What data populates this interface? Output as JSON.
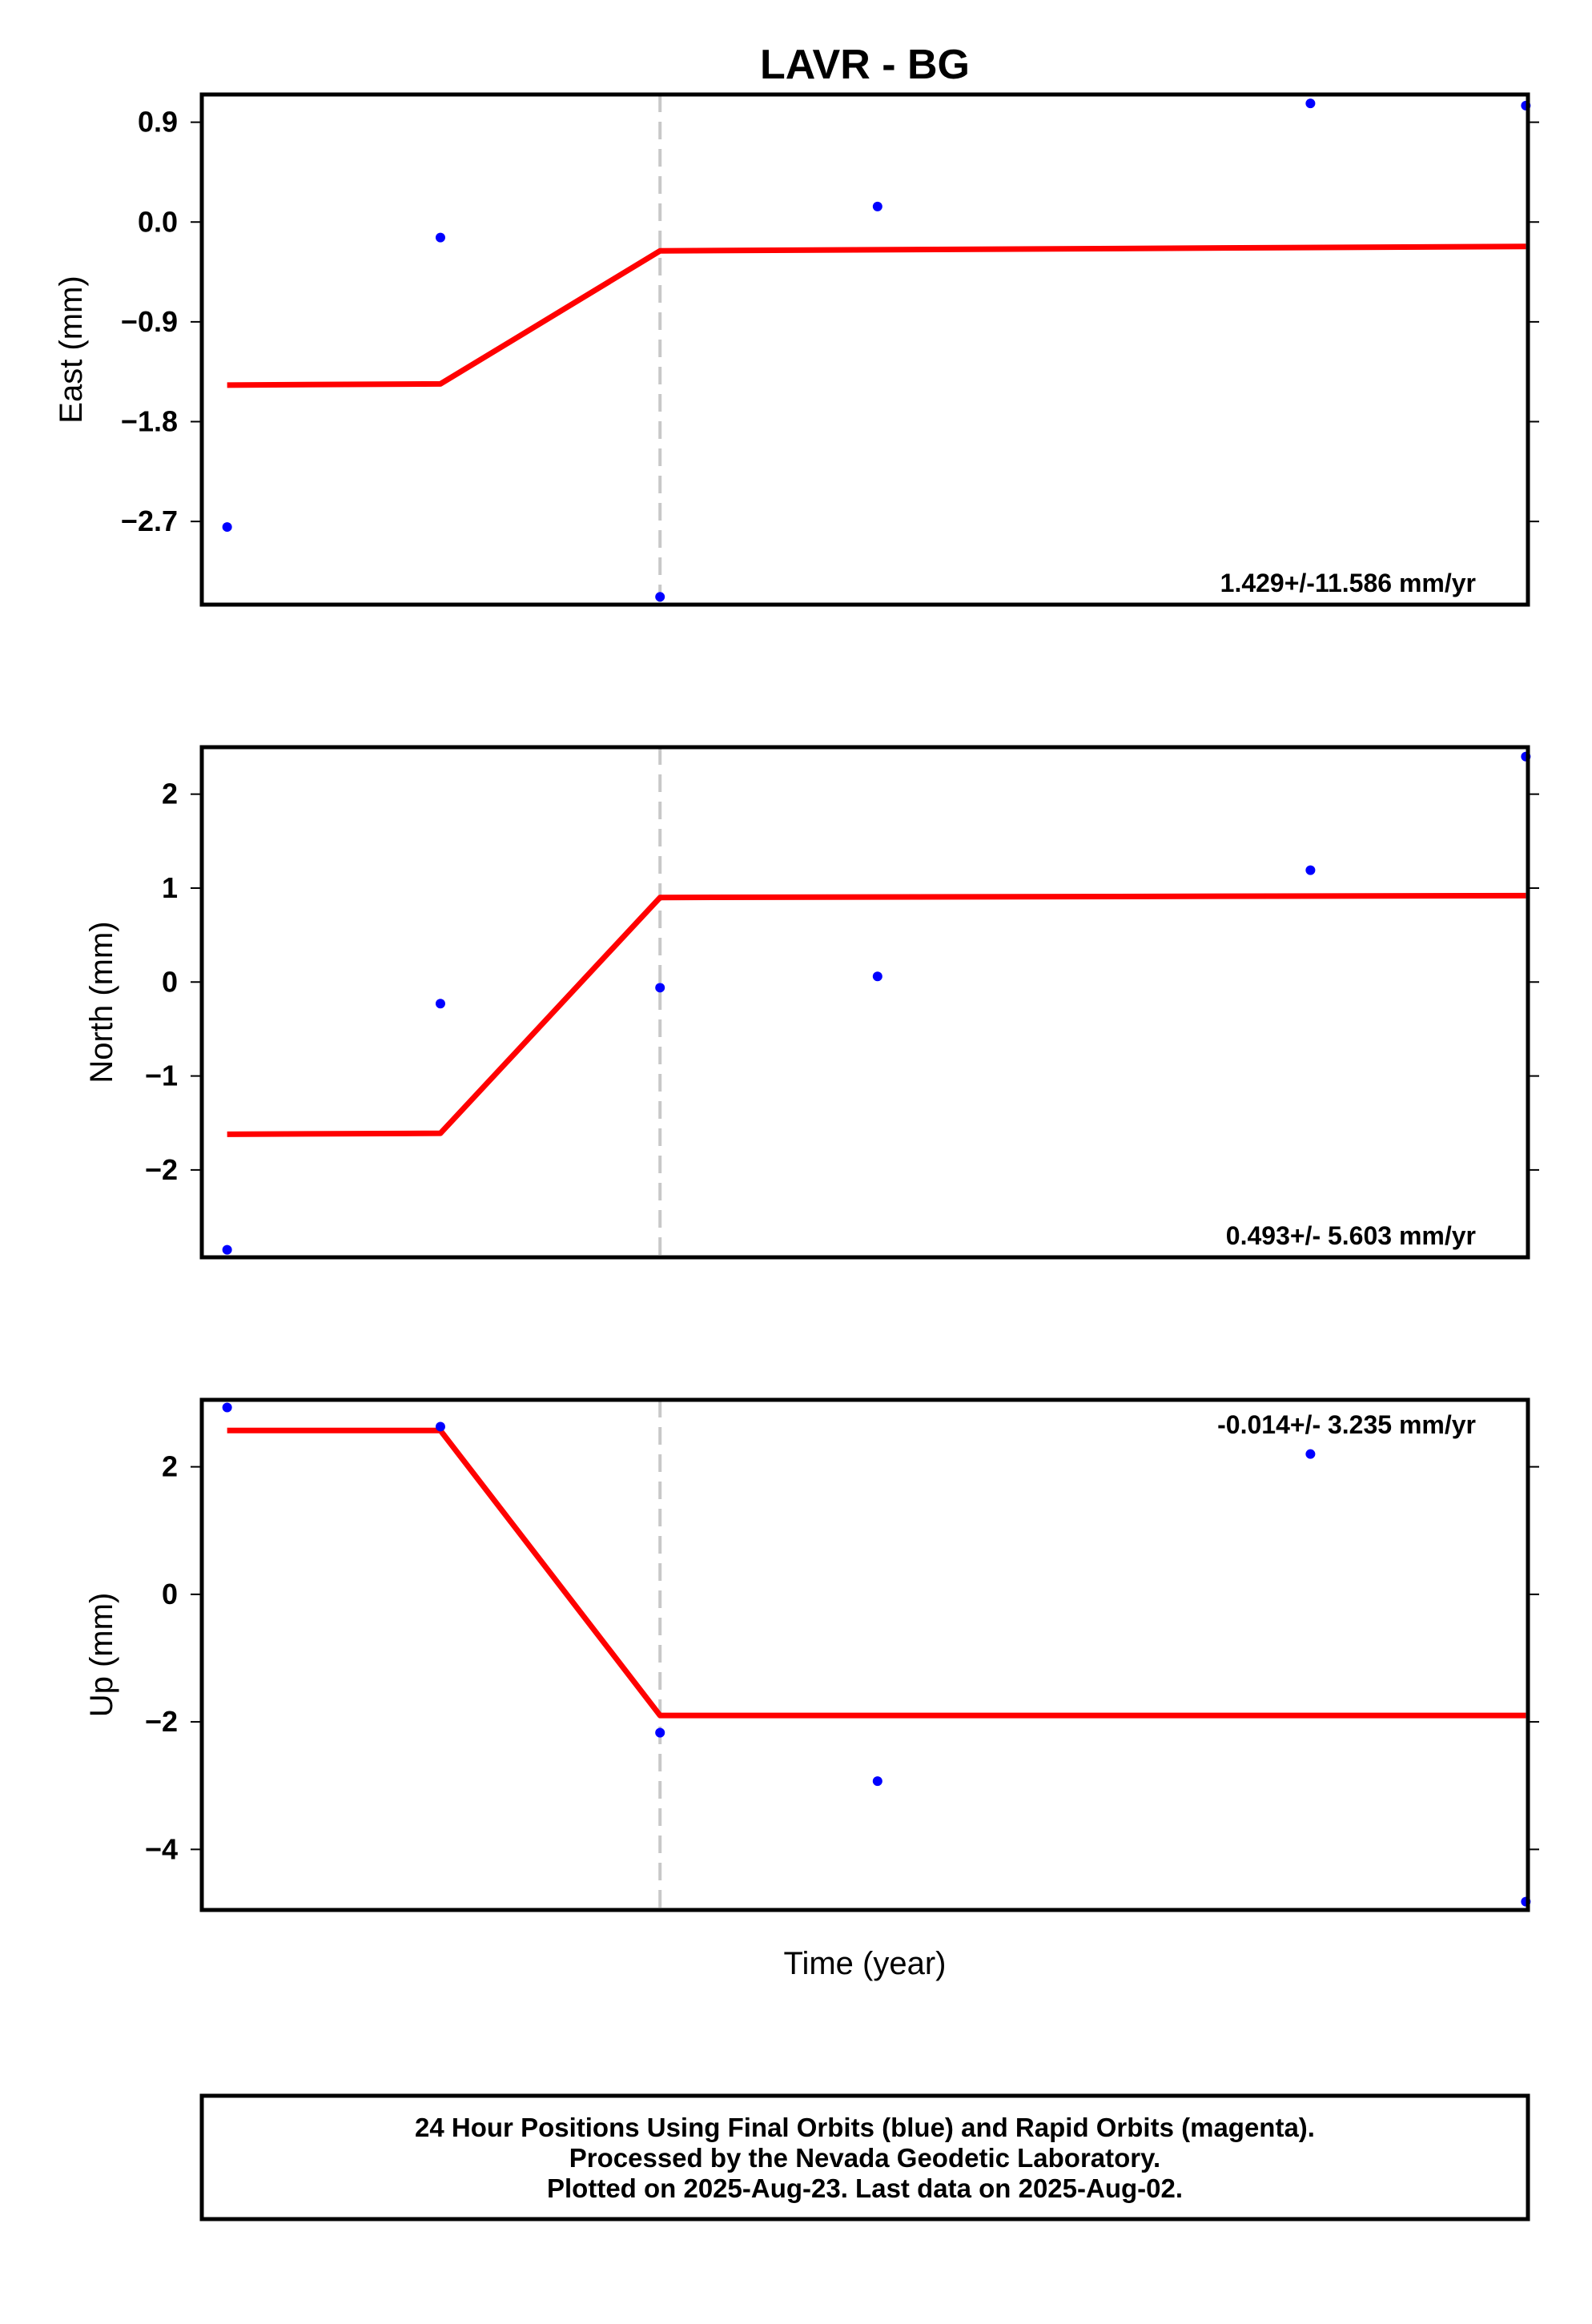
{
  "chart_data": {
    "title": "LAVR - BG",
    "xlabel": "Time (year)",
    "type": "scatter",
    "colors": {
      "points": "#0000ff",
      "fit": "#ff0000",
      "event_line": "#c8c8c8",
      "frame": "#000000"
    },
    "x_range": [
      0,
      6.28
    ],
    "event_x": 2.17,
    "panels": [
      {
        "ylabel": "East (mm)",
        "ylim": [
          -3.45,
          1.15
        ],
        "yticks": [
          -2.7,
          -1.8,
          -0.9,
          0.0,
          0.9
        ],
        "ytick_labels": [
          "−2.7",
          "−1.8",
          "−0.9",
          "0.0",
          "0.9"
        ],
        "rate_text": "1.429+/-11.586 mm/yr",
        "rate_position": "bottom-right",
        "points": [
          {
            "x": 0.12,
            "y": -2.75
          },
          {
            "x": 1.13,
            "y": -0.14
          },
          {
            "x": 2.17,
            "y": -3.38
          },
          {
            "x": 3.2,
            "y": 0.14
          },
          {
            "x": 5.25,
            "y": 1.07
          },
          {
            "x": 6.27,
            "y": 1.05
          }
        ],
        "fit": [
          {
            "x": 0.12,
            "y": -1.47
          },
          {
            "x": 1.13,
            "y": -1.46
          },
          {
            "x": 2.17,
            "y": -0.26
          },
          {
            "x": 6.27,
            "y": -0.22
          }
        ]
      },
      {
        "ylabel": "North (mm)",
        "ylim": [
          -2.93,
          2.5
        ],
        "yticks": [
          -2,
          -1,
          0,
          1,
          2
        ],
        "ytick_labels": [
          "−2",
          "−1",
          "0",
          "1",
          "2"
        ],
        "rate_text": "0.493+/- 5.603 mm/yr",
        "rate_position": "bottom-right",
        "points": [
          {
            "x": 0.12,
            "y": -2.85
          },
          {
            "x": 1.13,
            "y": -0.23
          },
          {
            "x": 2.17,
            "y": -0.06
          },
          {
            "x": 3.2,
            "y": 0.06
          },
          {
            "x": 5.25,
            "y": 1.19
          },
          {
            "x": 6.27,
            "y": 2.4
          }
        ],
        "fit": [
          {
            "x": 0.12,
            "y": -1.62
          },
          {
            "x": 1.13,
            "y": -1.61
          },
          {
            "x": 2.17,
            "y": 0.9
          },
          {
            "x": 6.27,
            "y": 0.92
          }
        ]
      },
      {
        "ylabel": "Up (mm)",
        "ylim": [
          -4.95,
          3.05
        ],
        "yticks": [
          -4,
          -2,
          0,
          2
        ],
        "ytick_labels": [
          "−4",
          "−2",
          "0",
          "2"
        ],
        "rate_text": "-0.014+/- 3.235 mm/yr",
        "rate_position": "top-right",
        "points": [
          {
            "x": 0.12,
            "y": 2.93
          },
          {
            "x": 1.13,
            "y": 2.63
          },
          {
            "x": 2.17,
            "y": -2.17
          },
          {
            "x": 3.2,
            "y": -2.93
          },
          {
            "x": 5.25,
            "y": 2.2
          },
          {
            "x": 6.27,
            "y": -4.82
          }
        ],
        "fit": [
          {
            "x": 0.12,
            "y": 2.57
          },
          {
            "x": 1.13,
            "y": 2.57
          },
          {
            "x": 2.17,
            "y": -1.9
          },
          {
            "x": 6.27,
            "y": -1.9
          }
        ]
      }
    ]
  },
  "footer": {
    "line1": "24 Hour Positions Using Final Orbits (blue) and Rapid Orbits (magenta).",
    "line2": "Processed by the Nevada Geodetic Laboratory.",
    "line3": "Plotted on 2025-Aug-23. Last data on 2025-Aug-02."
  }
}
